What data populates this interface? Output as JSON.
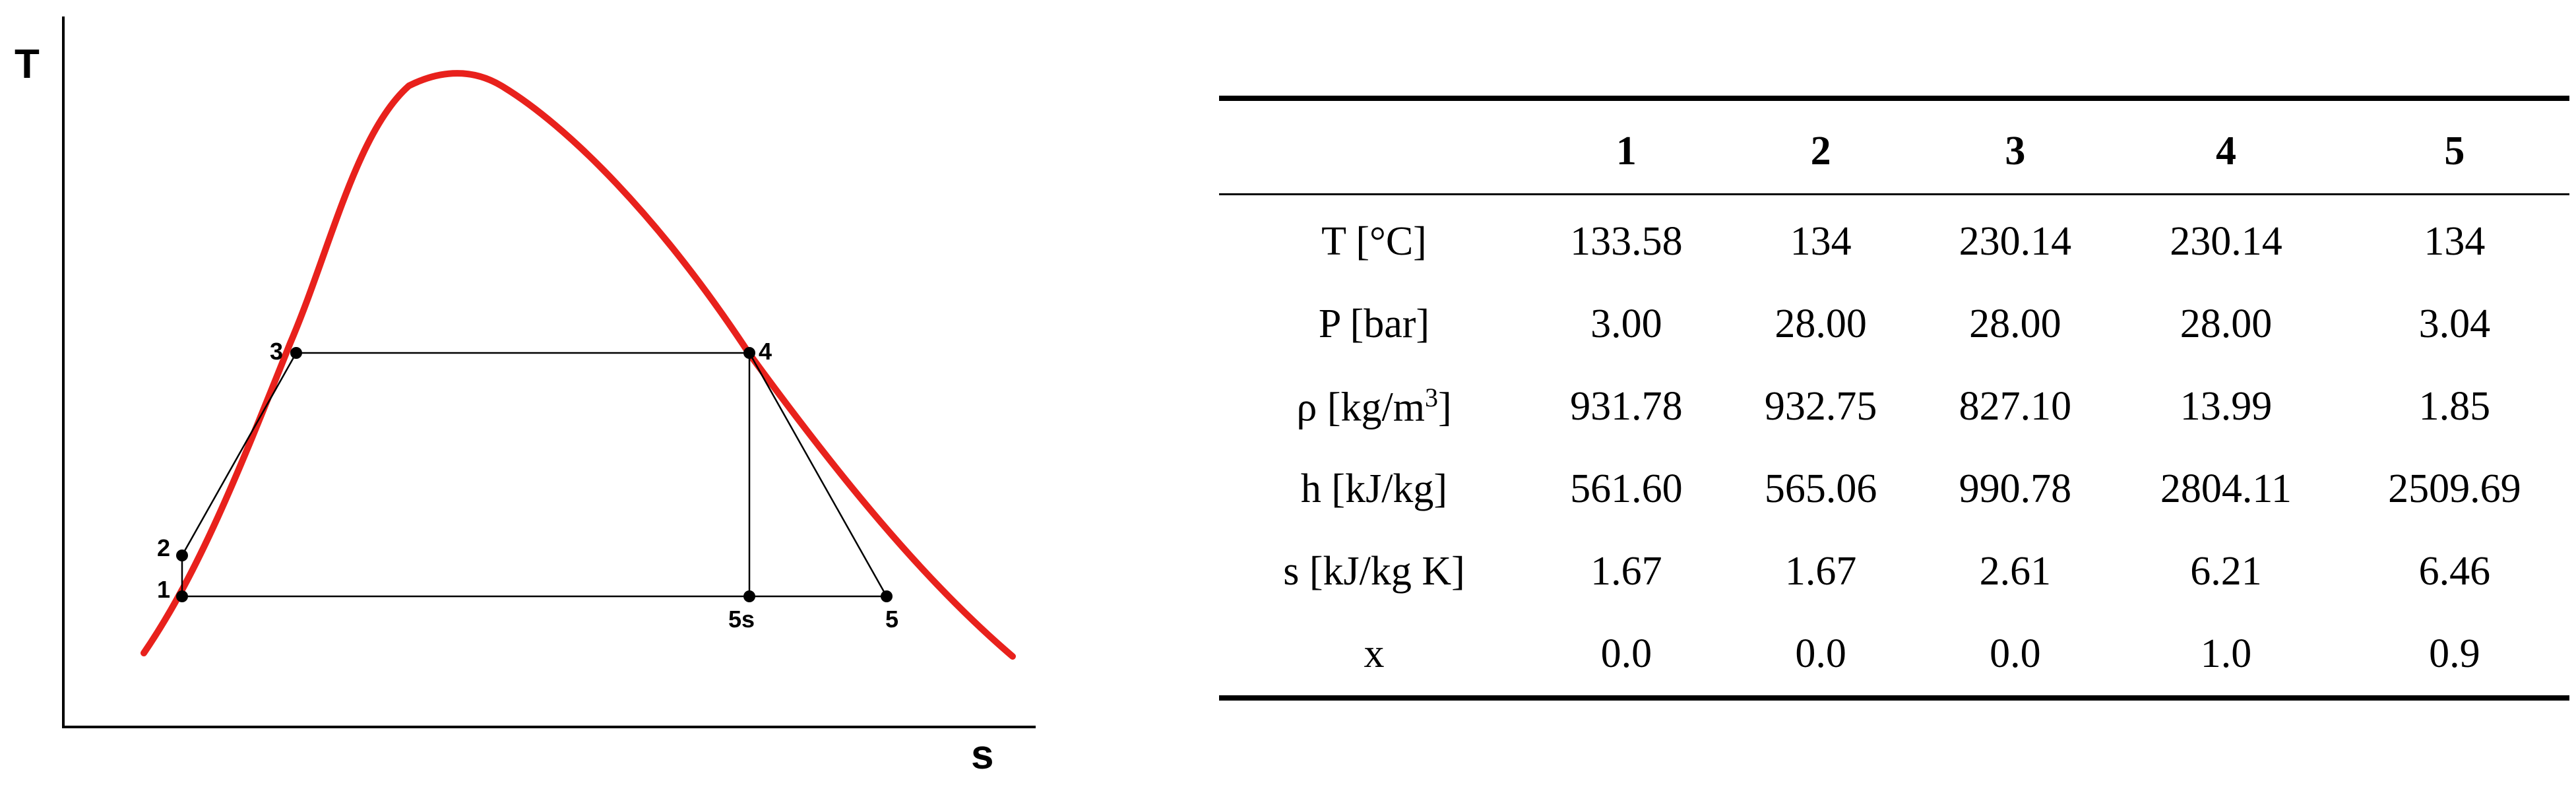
{
  "diagram": {
    "x_axis_label": "s",
    "y_axis_label": "T",
    "curve_color": "#e8211c",
    "points": [
      {
        "id": "1",
        "label": "1"
      },
      {
        "id": "2",
        "label": "2"
      },
      {
        "id": "3",
        "label": "3"
      },
      {
        "id": "4",
        "label": "4"
      },
      {
        "id": "5s",
        "label": "5s"
      },
      {
        "id": "5",
        "label": "5"
      }
    ]
  },
  "table": {
    "columns": [
      "1",
      "2",
      "3",
      "4",
      "5"
    ],
    "rows": [
      {
        "label": "T [°C]",
        "values": [
          "133.58",
          "134",
          "230.14",
          "230.14",
          "134"
        ]
      },
      {
        "label": "P [bar]",
        "values": [
          "3.00",
          "28.00",
          "28.00",
          "28.00",
          "3.04"
        ]
      },
      {
        "label_prefix": "ρ [kg/m",
        "label_sup": "3",
        "label_suffix": "]",
        "values": [
          "931.78",
          "932.75",
          "827.10",
          "13.99",
          "1.85"
        ]
      },
      {
        "label": "h [kJ/kg]",
        "values": [
          "561.60",
          "565.06",
          "990.78",
          "2804.11",
          "2509.69"
        ]
      },
      {
        "label": "s [kJ/kg K]",
        "values": [
          "1.67",
          "1.67",
          "2.61",
          "6.21",
          "6.46"
        ]
      },
      {
        "label": "x",
        "values": [
          "0.0",
          "0.0",
          "0.0",
          "1.0",
          "0.9"
        ]
      }
    ]
  }
}
